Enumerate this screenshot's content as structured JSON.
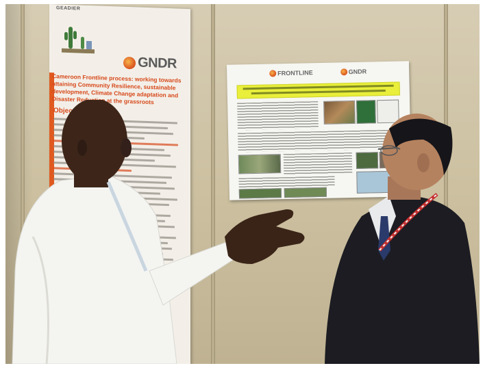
{
  "scene": {
    "description_tags": [
      "left-man-white-shirt",
      "right-man-dark-suit",
      "roll-up-banner",
      "wall-poster"
    ]
  },
  "banner": {
    "header": "GEADIER",
    "logo_text": "GNDR",
    "title": "Cameroon Frontline process: working towards attaining Community Resilience, sustainable development, Climate Change adaptation and Disaster Reduction at the grassroots",
    "objective_label": "Objective:"
  },
  "poster": {
    "logo_left": "FRONTLINE",
    "logo_right": "GNDR"
  },
  "colors": {
    "banner_orange": "#d74a1c",
    "poster_band": "#e9ef3a",
    "wall": "#cbbf9f"
  }
}
